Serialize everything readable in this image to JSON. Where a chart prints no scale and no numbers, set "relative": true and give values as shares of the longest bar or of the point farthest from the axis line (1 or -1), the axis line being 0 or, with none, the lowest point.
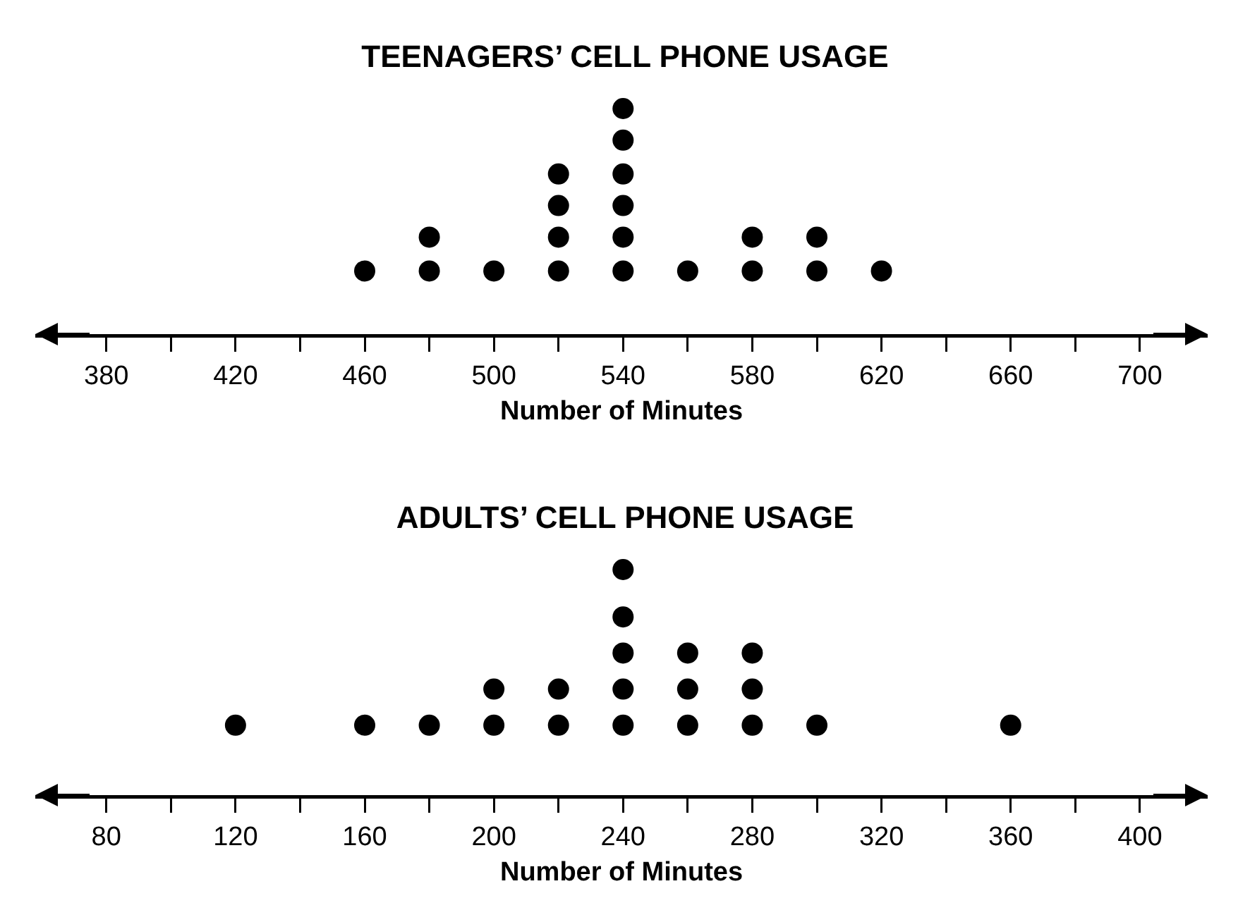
{
  "chart_data": [
    {
      "type": "scatter",
      "title": "TEENAGERS’ CELL PHONE USAGE",
      "xlabel": "Number of Minutes",
      "color": "#000000",
      "marker": "circle",
      "grid": false,
      "relative": true,
      "x": [
        460,
        480,
        480,
        500,
        520,
        520,
        520,
        520,
        540,
        540,
        540,
        540,
        540,
        540,
        560,
        580,
        580,
        600,
        600,
        620
      ],
      "values": [
        0.28,
        0.28,
        0.43,
        0.28,
        0.28,
        0.43,
        0.57,
        0.71,
        0.28,
        0.43,
        0.57,
        0.71,
        0.86,
        1,
        0.28,
        0.28,
        0.43,
        0.28,
        0.43,
        0.28
      ],
      "xlim": [
        358,
        721
      ],
      "xticks": [
        380,
        {
          "value": 400,
          "label": null
        },
        420,
        {
          "value": 440,
          "label": null
        },
        460,
        {
          "value": 480,
          "label": null
        },
        500,
        {
          "value": 520,
          "label": null
        },
        540,
        {
          "value": 560,
          "label": null
        },
        580,
        {
          "value": 600,
          "label": null
        },
        620,
        {
          "value": 640,
          "label": null
        },
        660,
        {
          "value": 680,
          "label": null
        },
        700
      ]
    },
    {
      "type": "scatter",
      "title": "ADULTS’ CELL PHONE USAGE",
      "xlabel": "Number of Minutes",
      "color": "#000000",
      "marker": "circle",
      "grid": false,
      "relative": true,
      "x": [
        120,
        160,
        180,
        200,
        200,
        220,
        220,
        240,
        240,
        240,
        240,
        240,
        260,
        260,
        260,
        280,
        280,
        280,
        300,
        360
      ],
      "values": [
        0.31,
        0.31,
        0.31,
        0.31,
        0.47,
        0.31,
        0.47,
        0.31,
        0.47,
        0.63,
        0.79,
        1,
        0.31,
        0.47,
        0.63,
        0.31,
        0.47,
        0.63,
        0.31,
        0.31
      ],
      "xlim": [
        58,
        421
      ],
      "xticks": [
        80,
        {
          "value": 100,
          "label": null
        },
        120,
        {
          "value": 140,
          "label": null
        },
        160,
        {
          "value": 180,
          "label": null
        },
        200,
        {
          "value": 220,
          "label": null
        },
        240,
        {
          "value": 260,
          "label": null
        },
        280,
        {
          "value": 300,
          "label": null
        },
        320,
        {
          "value": 340,
          "label": null
        },
        360,
        {
          "value": 380,
          "label": null
        },
        400
      ]
    }
  ]
}
